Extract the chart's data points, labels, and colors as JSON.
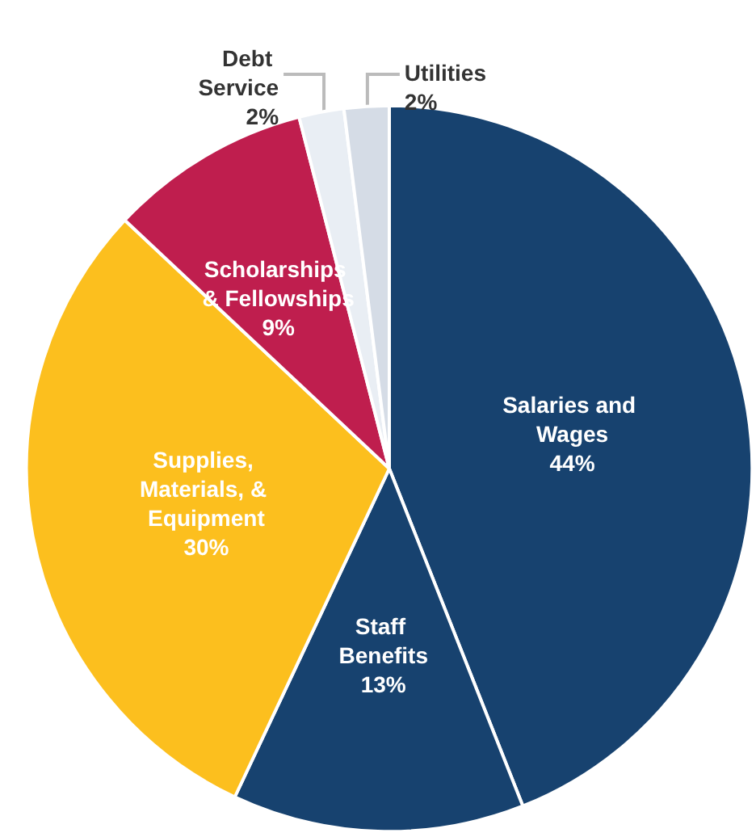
{
  "chart_data": {
    "type": "pie",
    "categories": [
      "Salaries and Wages",
      "Staff Benefits",
      "Supplies, Materials, & Equipment",
      "Scholarships & Fellowships",
      "Debt Service",
      "Utilities"
    ],
    "values": [
      44,
      13,
      30,
      9,
      2,
      2
    ],
    "value_labels": [
      "44%",
      "13%",
      "30%",
      "9%",
      "2%",
      "2%"
    ],
    "colors": [
      "#17426f",
      "#17426f",
      "#fcbf1e",
      "#bf1e4e",
      "#e9eef4",
      "#d5dce6"
    ],
    "legend": false
  }
}
